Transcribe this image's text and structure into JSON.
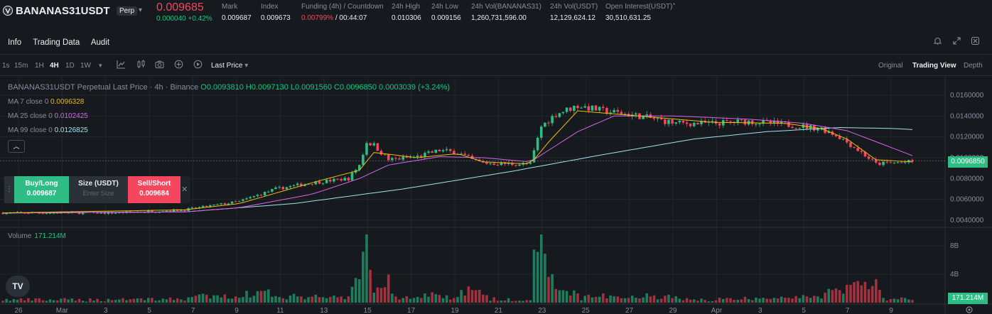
{
  "ticker": {
    "symbol": "BANANAS31USDT",
    "badge": "Perp",
    "last_price": "0.009685",
    "change": "0.000040 +0.42%",
    "stats": [
      {
        "label": "Mark",
        "value": "0.009687"
      },
      {
        "label": "Index",
        "value": "0.009673"
      },
      {
        "label": "Funding (4h) / Countdown",
        "value": "0.00799%",
        "countdown": " / 00:44:07"
      },
      {
        "label": "24h High",
        "value": "0.010306"
      },
      {
        "label": "24h Low",
        "value": "0.009156"
      },
      {
        "label": "24h Vol(BANANAS31)",
        "value": "1,260,731,596.00"
      },
      {
        "label": "24h Vol(USDT)",
        "value": "12,129,624.12"
      },
      {
        "label": "Open Interest(USDT)",
        "value": "30,510,631.25"
      }
    ]
  },
  "subtabs": [
    "Info",
    "Trading Data",
    "Audit"
  ],
  "toolbar": {
    "intervals": [
      "1s",
      "15m",
      "1H",
      "4H",
      "1D",
      "1W"
    ],
    "selected_interval": "4H",
    "price_type": "Last Price",
    "views": [
      "Original",
      "Trading View",
      "Depth"
    ],
    "selected_view": "Trading View"
  },
  "icons": {
    "symbol": "bananas-logo-icon",
    "dropdown": "chevron-down-icon",
    "star": "star-icon",
    "bell": "bell-icon",
    "expand": "expand-icon",
    "close": "close-icon",
    "indicators": "indicators-icon",
    "chart_type": "candles-icon",
    "camera": "camera-icon",
    "add": "plus-circle-icon",
    "replay": "replay-icon",
    "settings": "settings-icon"
  },
  "legend": {
    "title": "BANANAS31USDT Perpetual Last Price · 4h · Binance",
    "ohlc": "O0.0093810 H0.0097130 L0.0091560 C0.0096850 0.0003039 (+3.24%)",
    "ma": [
      {
        "label": "MA 7 close 0",
        "value": "0.0096328",
        "color": "#f0b90b"
      },
      {
        "label": "MA 25 close 0",
        "value": "0.0102425",
        "color": "#d964e9"
      },
      {
        "label": "MA 99 close 0",
        "value": "0.0126825",
        "color": "#9ee3ec"
      }
    ]
  },
  "order": {
    "buy_label": "Buy/Long",
    "buy_price": "0.009687",
    "size_label": "Size (USDT)",
    "size_placeholder": "Enter Size",
    "sell_label": "Sell/Short",
    "sell_price": "0.009684"
  },
  "volume": {
    "label": "Volume",
    "value": "171.214M",
    "tag": "171.214M"
  },
  "price_tag": "0.0096850",
  "chart_data": {
    "type": "candlestick",
    "interval": "4h",
    "price_axis": {
      "ticks": [
        "0.0160000",
        "0.0140000",
        "0.0120000",
        "0.0100000",
        "0.0080000",
        "0.0060000",
        "0.0040000"
      ],
      "tick_values": [
        0.016,
        0.014,
        0.012,
        0.01,
        0.008,
        0.006,
        0.004
      ]
    },
    "volume_axis": {
      "ticks": [
        "8B",
        "4B"
      ],
      "tick_values": [
        8000000000,
        4000000000
      ]
    },
    "x_ticks": [
      "26",
      "Mar",
      "3",
      "5",
      "7",
      "9",
      "11",
      "13",
      "15",
      "17",
      "19",
      "21",
      "23",
      "25",
      "27",
      "29",
      "Apr",
      "3",
      "5",
      "7",
      "9"
    ],
    "current_price": 0.009685,
    "close_path": [
      [
        0,
        0.0047
      ],
      [
        30,
        0.0047
      ],
      [
        50,
        0.005
      ],
      [
        65,
        0.0058
      ],
      [
        75,
        0.007
      ],
      [
        85,
        0.0076
      ],
      [
        95,
        0.008
      ],
      [
        98,
        0.0093
      ],
      [
        100,
        0.0115
      ],
      [
        102,
        0.0112
      ],
      [
        106,
        0.0098
      ],
      [
        114,
        0.0101
      ],
      [
        120,
        0.0107
      ],
      [
        125,
        0.0105
      ],
      [
        129,
        0.0098
      ],
      [
        132,
        0.0095
      ],
      [
        140,
        0.0094
      ],
      [
        145,
        0.0094
      ],
      [
        148,
        0.013
      ],
      [
        152,
        0.0142
      ],
      [
        158,
        0.015
      ],
      [
        165,
        0.0145
      ],
      [
        175,
        0.014
      ],
      [
        185,
        0.0133
      ],
      [
        195,
        0.0133
      ],
      [
        205,
        0.0135
      ],
      [
        215,
        0.0132
      ],
      [
        220,
        0.013
      ],
      [
        225,
        0.0128
      ],
      [
        230,
        0.012
      ],
      [
        236,
        0.0105
      ],
      [
        240,
        0.0094
      ],
      [
        244,
        0.0095
      ],
      [
        250,
        0.0096
      ]
    ],
    "ma_paths": {
      "ma7": [
        [
          0,
          0.0047
        ],
        [
          50,
          0.005
        ],
        [
          65,
          0.0056
        ],
        [
          85,
          0.0076
        ],
        [
          98,
          0.0088
        ],
        [
          102,
          0.0105
        ],
        [
          114,
          0.01
        ],
        [
          125,
          0.0104
        ],
        [
          132,
          0.0096
        ],
        [
          145,
          0.0094
        ],
        [
          150,
          0.0115
        ],
        [
          158,
          0.0145
        ],
        [
          175,
          0.014
        ],
        [
          195,
          0.0134
        ],
        [
          215,
          0.0133
        ],
        [
          225,
          0.0128
        ],
        [
          232,
          0.0118
        ],
        [
          240,
          0.0098
        ],
        [
          250,
          0.0096
        ]
      ],
      "ma25": [
        [
          0,
          0.0047
        ],
        [
          50,
          0.0048
        ],
        [
          65,
          0.0052
        ],
        [
          85,
          0.0065
        ],
        [
          98,
          0.008
        ],
        [
          106,
          0.0093
        ],
        [
          120,
          0.0101
        ],
        [
          132,
          0.01
        ],
        [
          145,
          0.0096
        ],
        [
          158,
          0.0125
        ],
        [
          168,
          0.014
        ],
        [
          185,
          0.014
        ],
        [
          205,
          0.0137
        ],
        [
          220,
          0.0133
        ],
        [
          232,
          0.0126
        ],
        [
          250,
          0.0102
        ]
      ],
      "ma99": [
        [
          0,
          0.0047
        ],
        [
          50,
          0.0048
        ],
        [
          80,
          0.0056
        ],
        [
          110,
          0.007
        ],
        [
          140,
          0.0087
        ],
        [
          165,
          0.0103
        ],
        [
          190,
          0.0118
        ],
        [
          210,
          0.0125
        ],
        [
          230,
          0.0129
        ],
        [
          245,
          0.0128
        ],
        [
          250,
          0.0127
        ]
      ]
    }
  }
}
